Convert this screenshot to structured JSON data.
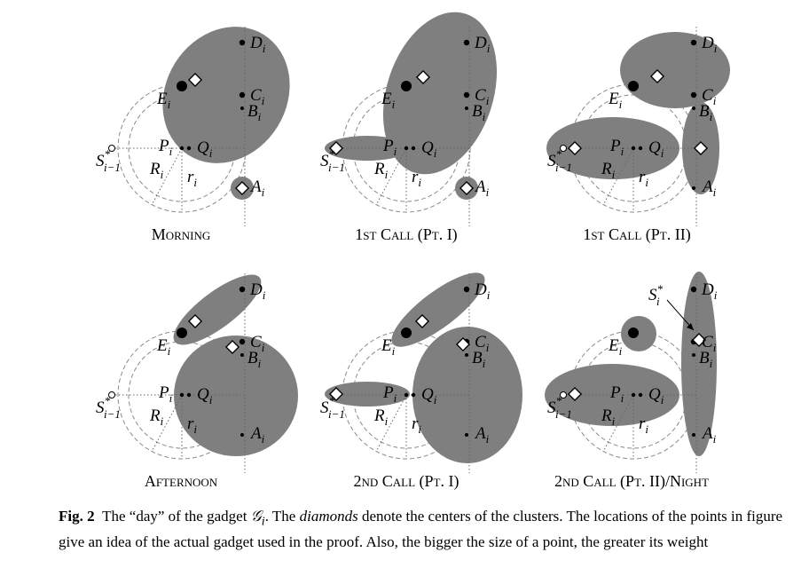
{
  "panels": [
    {
      "caption": "Morning"
    },
    {
      "caption": "1st Call (Pt. I)"
    },
    {
      "caption": "1st Call (Pt. II)"
    },
    {
      "caption": "Afternoon"
    },
    {
      "caption": "2nd Call (Pt. I)"
    },
    {
      "caption": "2nd Call (Pt. II)/Night"
    }
  ],
  "labels": {
    "D": "D",
    "C": "C",
    "B": "B",
    "E": "E",
    "P": "P",
    "Q": "Q",
    "A": "A",
    "S": "S",
    "R": "R",
    "r": "r",
    "sub_i": "i",
    "sub_im1": "i−1",
    "star": "*"
  },
  "caption": {
    "fig_label": "Fig. 2",
    "text_1": "The “day” of the gadget ",
    "gadget_symbol": "𝒢",
    "gadget_sub": "i",
    "text_2": ". The ",
    "emph": "diamonds",
    "text_3": " denote the centers of the clusters. The locations of the points in figure give an idea of the actual gadget used in the proof. Also, the bigger the size of a point, the greater its weight"
  }
}
